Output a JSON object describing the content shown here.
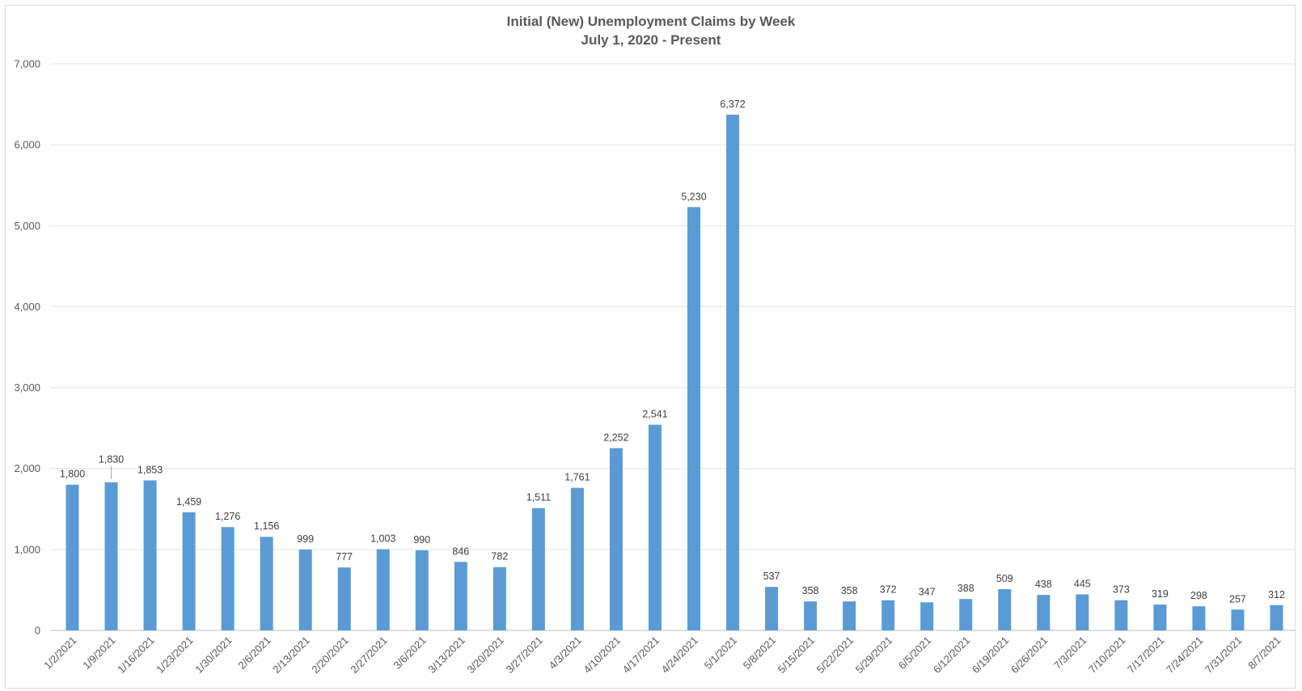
{
  "chart_data": {
    "type": "bar",
    "title": "Initial (New) Unemployment Claims by Week",
    "subtitle": "July 1, 2020 - Present",
    "xlabel": "",
    "ylabel": "",
    "ylim": [
      0,
      7000
    ],
    "yticks": [
      0,
      1000,
      2000,
      3000,
      4000,
      5000,
      6000,
      7000
    ],
    "ytick_labels": [
      "0",
      "1,000",
      "2,000",
      "3,000",
      "4,000",
      "5,000",
      "6,000",
      "7,000"
    ],
    "grid": true,
    "legend": "none",
    "bar_color": "#5b9bd5",
    "categories": [
      "1/2/2021",
      "1/9/2021",
      "1/16/2021",
      "1/23/2021",
      "1/30/2021",
      "2/6/2021",
      "2/13/2021",
      "2/20/2021",
      "2/27/2021",
      "3/6/2021",
      "3/13/2021",
      "3/20/2021",
      "3/27/2021",
      "4/3/2021",
      "4/10/2021",
      "4/17/2021",
      "4/24/2021",
      "5/1/2021",
      "5/8/2021",
      "5/15/2021",
      "5/22/2021",
      "5/29/2021",
      "6/5/2021",
      "6/12/2021",
      "6/19/2021",
      "6/26/2021",
      "7/3/2021",
      "7/10/2021",
      "7/17/2021",
      "7/24/2021",
      "7/31/2021",
      "8/7/2021"
    ],
    "values": [
      1800,
      1830,
      1853,
      1459,
      1276,
      1156,
      999,
      777,
      1003,
      990,
      846,
      782,
      1511,
      1761,
      2252,
      2541,
      5230,
      6372,
      537,
      358,
      358,
      372,
      347,
      388,
      509,
      438,
      445,
      373,
      319,
      298,
      257,
      312
    ],
    "value_labels": [
      "1,800",
      "1,830",
      "1,853",
      "1,459",
      "1,276",
      "1,156",
      "999",
      "777",
      "1,003",
      "990",
      "846",
      "782",
      "1,511",
      "1,761",
      "2,252",
      "2,541",
      "5,230",
      "6,372",
      "537",
      "358",
      "358",
      "372",
      "347",
      "388",
      "509",
      "438",
      "445",
      "373",
      "319",
      "298",
      "257",
      "312"
    ]
  }
}
